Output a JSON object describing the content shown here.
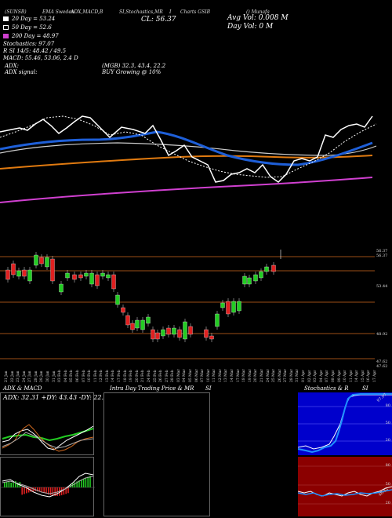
{
  "header": {
    "tags": [
      "(SUNSB)",
      "EMA Sweden",
      "ADX,MACD,B",
      "SI,Stochastics,MR",
      "I",
      "Charts GSIB",
      "() Munafa"
    ]
  },
  "ema": {
    "ema20": "20 Day = 53.24",
    "ema50": "50 Day = 52.6",
    "ema200": "200 Day = 48.97"
  },
  "close": "CL: 56.37",
  "volume": {
    "avg": "Avg Vol: 0.008  M",
    "day": "Day Vol: 0  M"
  },
  "stochastics": {
    "value": "Stochastics: 97.07",
    "r": "R          SI 14/5: 48.42 / 49.5",
    "macd": "MACD: 55.46, 53.06, 2.4  D"
  },
  "adx": {
    "line1_label": "ADX:",
    "line1_value": "(MGB) 32.3,  43.4,  22.2",
    "line2_label": "ADX  signal:",
    "line2_value": "BUY Growing @ 10%"
  },
  "price_labels": [
    "56.37",
    "56.37",
    "53.44",
    "48.92",
    "47.62",
    "47.62"
  ],
  "dates": [
    "21 Jan",
    "22 Jan",
    "23 Jan",
    "24 Jan",
    "27 Jan",
    "28 Jan",
    "29 Jan",
    "30 Jan",
    "31 Jan",
    "03 Feb",
    "04 Feb",
    "05 Feb",
    "06 Feb",
    "07 Feb",
    "10 Feb",
    "11 Feb",
    "12 Feb",
    "13 Feb",
    "14 Feb",
    "17 Feb",
    "18 Feb",
    "19 Feb",
    "20 Feb",
    "21 Feb",
    "24 Feb",
    "25 Feb",
    "26 Feb",
    "27 Feb",
    "28 Feb",
    "03 Mar",
    "04 Mar",
    "05 Mar",
    "06 Mar",
    "07 Mar",
    "10 Mar",
    "11 Mar",
    "12 Mar",
    "13 Mar",
    "14 Mar",
    "17 Mar",
    "18 Mar",
    "19 Mar",
    "20 Mar",
    "21 Mar",
    "24 Mar",
    "25 Mar",
    "26 Mar",
    "27 Mar",
    "28 Mar",
    "31 Mar",
    "01 Apr",
    "02 Apr",
    "03 Apr",
    "04 Apr",
    "07 Apr",
    "08 Apr",
    "09 Apr",
    "10 Apr",
    "11 Apr",
    "14 Apr",
    "15 Apr",
    "16 Apr",
    "17 Apr"
  ],
  "panels": {
    "adx_macd": {
      "title": "ADX  & MACD",
      "adx_line": "ADX: 32.31 +DY: 43.43 -DY: 22.22"
    },
    "intraday": {
      "title": "Intra Day Trading Price  & MR",
      "title_right": "SI"
    },
    "stoch": {
      "title": "Stochastics & R",
      "title_right": "SI",
      "labels": [
        "97.07",
        "80",
        "50",
        "20",
        "80",
        "50",
        "20",
        "48.42"
      ]
    }
  },
  "colors": {
    "ema_fast": "#1e5fd8",
    "ema_orange": "#e07a10",
    "ema_magenta": "#d040d0",
    "bull": "#22cc22",
    "bear": "#e02020",
    "stoch_bg": "#0000cc",
    "rsi_bg": "#8b0000"
  }
}
